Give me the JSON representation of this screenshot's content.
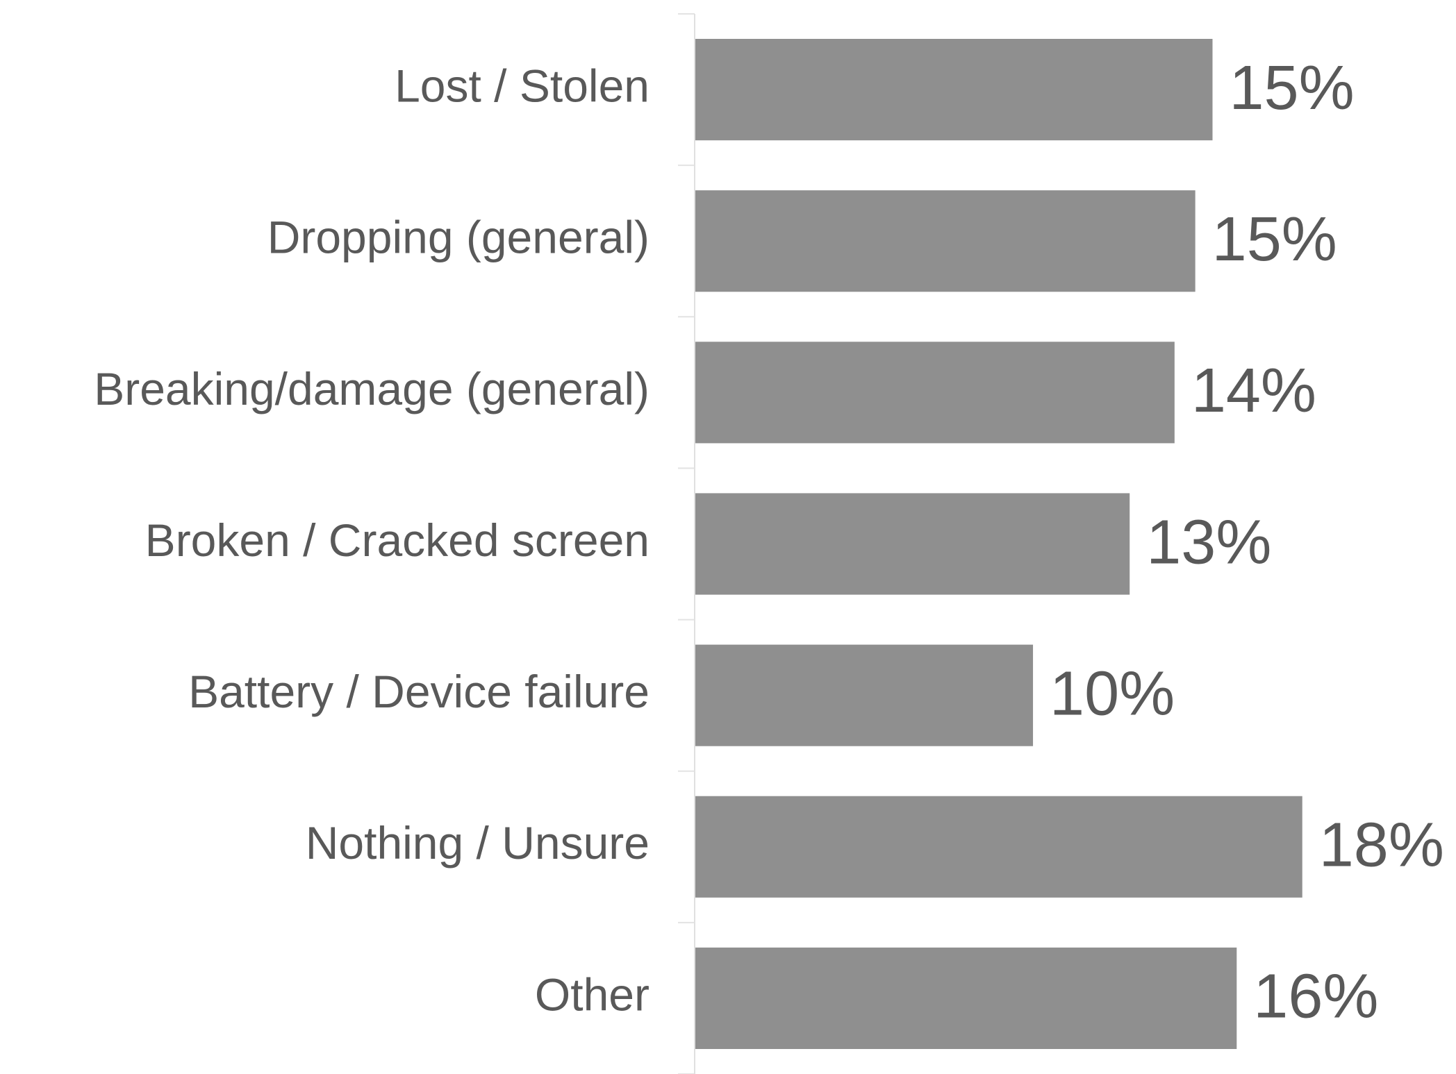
{
  "chart_data": {
    "type": "hbar",
    "categories": [
      "Lost / Stolen",
      "Dropping (general)",
      "Breaking/damage (general)",
      "Broken / Cracked screen",
      "Battery / Device failure",
      "Nothing / Unsure",
      "Other"
    ],
    "values": [
      15.0,
      14.5,
      13.9,
      12.6,
      9.8,
      17.6,
      15.7
    ],
    "value_labels": [
      "15%",
      "15%",
      "14%",
      "13%",
      "10%",
      "18%",
      "16%"
    ],
    "color": "#8f8f8f",
    "xlim": [
      0,
      20
    ]
  }
}
